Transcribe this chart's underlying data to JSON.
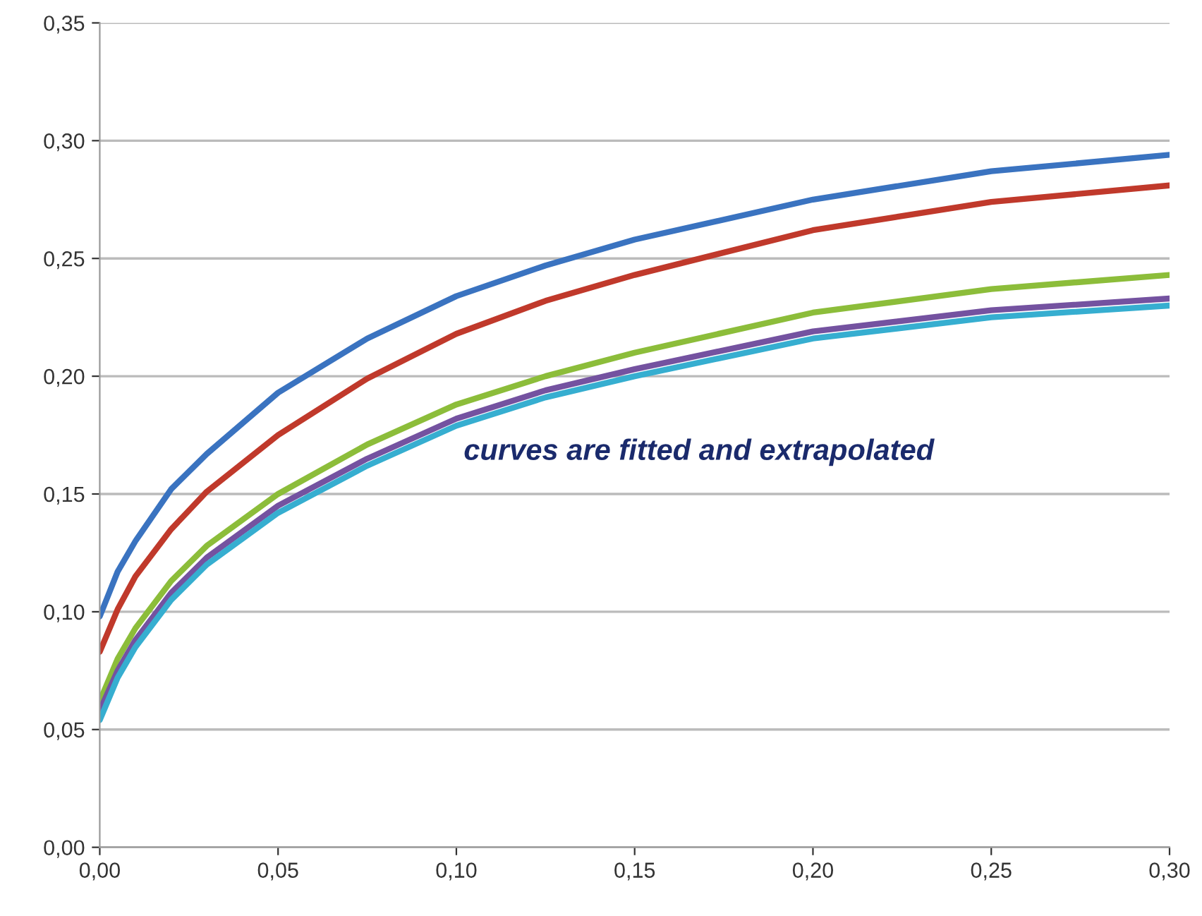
{
  "chart_data": {
    "type": "line",
    "x": [
      0,
      0.005,
      0.01,
      0.02,
      0.03,
      0.05,
      0.075,
      0.1,
      0.125,
      0.15,
      0.2,
      0.25,
      0.3
    ],
    "series": [
      {
        "color": "#3a73c0",
        "values": [
          0.098,
          0.117,
          0.13,
          0.152,
          0.167,
          0.193,
          0.216,
          0.234,
          0.247,
          0.258,
          0.275,
          0.287,
          0.294
        ]
      },
      {
        "color": "#c0392b",
        "values": [
          0.083,
          0.101,
          0.115,
          0.135,
          0.151,
          0.175,
          0.199,
          0.218,
          0.232,
          0.243,
          0.262,
          0.274,
          0.281
        ]
      },
      {
        "color": "#8cbd3a",
        "values": [
          0.062,
          0.08,
          0.093,
          0.113,
          0.128,
          0.15,
          0.171,
          0.188,
          0.2,
          0.21,
          0.227,
          0.237,
          0.243
        ]
      },
      {
        "color": "#7452a0",
        "values": [
          0.058,
          0.075,
          0.088,
          0.108,
          0.123,
          0.145,
          0.165,
          0.182,
          0.194,
          0.203,
          0.219,
          0.228,
          0.233
        ]
      },
      {
        "color": "#36aed0",
        "values": [
          0.054,
          0.072,
          0.085,
          0.105,
          0.12,
          0.142,
          0.162,
          0.179,
          0.191,
          0.2,
          0.216,
          0.225,
          0.23
        ]
      }
    ],
    "xlim": [
      0,
      0.3
    ],
    "xticks": [
      {
        "value": 0,
        "label": "0,00"
      },
      {
        "value": 0.05,
        "label": "0,05"
      },
      {
        "value": 0.1,
        "label": "0,10"
      },
      {
        "value": 0.15,
        "label": "0,15"
      },
      {
        "value": 0.2,
        "label": "0,20"
      },
      {
        "value": 0.25,
        "label": "0,25"
      },
      {
        "value": 0.3,
        "label": "0,30"
      }
    ],
    "ylim": [
      0,
      0.35
    ],
    "yticks": [
      {
        "value": 0,
        "label": "0,00"
      },
      {
        "value": 0.05,
        "label": "0,05"
      },
      {
        "value": 0.1,
        "label": "0,10"
      },
      {
        "value": 0.15,
        "label": "0,15"
      },
      {
        "value": 0.2,
        "label": "0,20"
      },
      {
        "value": 0.25,
        "label": "0,25"
      },
      {
        "value": 0.3,
        "label": "0,30"
      },
      {
        "value": 0.35,
        "label": "0,35"
      }
    ],
    "grid": "y",
    "annotations": [
      "curves are fitted and extrapolated"
    ]
  }
}
